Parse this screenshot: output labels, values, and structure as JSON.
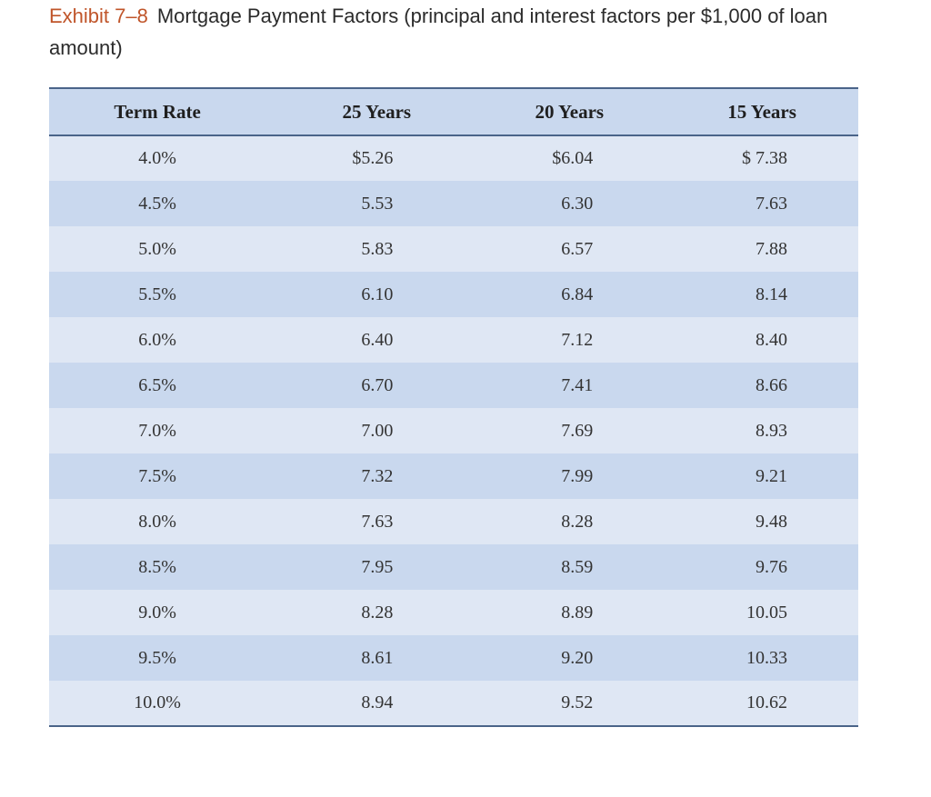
{
  "caption": {
    "label": "Exhibit 7–8",
    "title": "Mortgage Payment Factors (principal and interest factors per $1,000 of loan amount)"
  },
  "table": {
    "headers": [
      "Term Rate",
      "25 Years",
      "20 Years",
      "15 Years"
    ],
    "rows": [
      [
        "4.0%",
        "$5.26",
        "$6.04",
        "$ 7.38"
      ],
      [
        "4.5%",
        "5.53",
        "6.30",
        "7.63"
      ],
      [
        "5.0%",
        "5.83",
        "6.57",
        "7.88"
      ],
      [
        "5.5%",
        "6.10",
        "6.84",
        "8.14"
      ],
      [
        "6.0%",
        "6.40",
        "7.12",
        "8.40"
      ],
      [
        "6.5%",
        "6.70",
        "7.41",
        "8.66"
      ],
      [
        "7.0%",
        "7.00",
        "7.69",
        "8.93"
      ],
      [
        "7.5%",
        "7.32",
        "7.99",
        "9.21"
      ],
      [
        "8.0%",
        "7.63",
        "8.28",
        "9.48"
      ],
      [
        "8.5%",
        "7.95",
        "8.59",
        "9.76"
      ],
      [
        "9.0%",
        "8.28",
        "8.89",
        "10.05"
      ],
      [
        "9.5%",
        "8.61",
        "9.20",
        "10.33"
      ],
      [
        "10.0%",
        "8.94",
        "9.52",
        "10.62"
      ]
    ]
  },
  "colors": {
    "exhibit_label": "#c0552a",
    "header_bg": "#c9d8ee",
    "row_light": "#dfe7f4",
    "row_dark": "#c9d8ee",
    "rule": "#4a6489"
  }
}
